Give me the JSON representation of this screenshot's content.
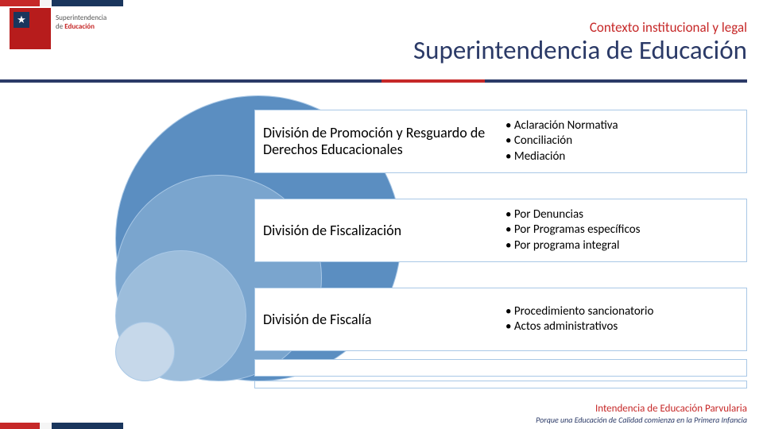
{
  "colors": {
    "navy": "#2b3a67",
    "red": "#c62828",
    "text": "#333333",
    "circle_border": "#a9c8e6",
    "circles": [
      "#5b8ec1",
      "#7aa5ce",
      "#9cbddb",
      "#c6d8ea"
    ],
    "bg": "#ffffff"
  },
  "logo": {
    "line1": "Superintendencia",
    "line2_prefix": "de ",
    "line2_bold": "Educación"
  },
  "header": {
    "context": "Contexto institucional y legal",
    "title": "Superintendencia de Educación"
  },
  "rows": [
    {
      "title": "División de Promoción y Resguardo de Derechos Educacionales",
      "bullets": [
        "Aclaración Normativa",
        "Conciliación",
        "Mediación"
      ]
    },
    {
      "title": "División de Fiscalización",
      "bullets": [
        "Por Denuncias",
        "Por Programas específicos",
        "Por programa integral"
      ]
    },
    {
      "title": "División de Fiscalía",
      "bullets": [
        "Procedimiento sancionatorio",
        "Actos administrativos"
      ]
    }
  ],
  "footer": {
    "title": "Intendencia de Educación Parvularia",
    "tagline": "Porque una Educación de Calidad comienza en la Primera Infancia"
  },
  "fonts": {
    "context_size": 17,
    "title_size": 33,
    "row_title_size": 18,
    "bullet_size": 15,
    "footer_title_size": 13,
    "footer_tag_size": 10
  }
}
